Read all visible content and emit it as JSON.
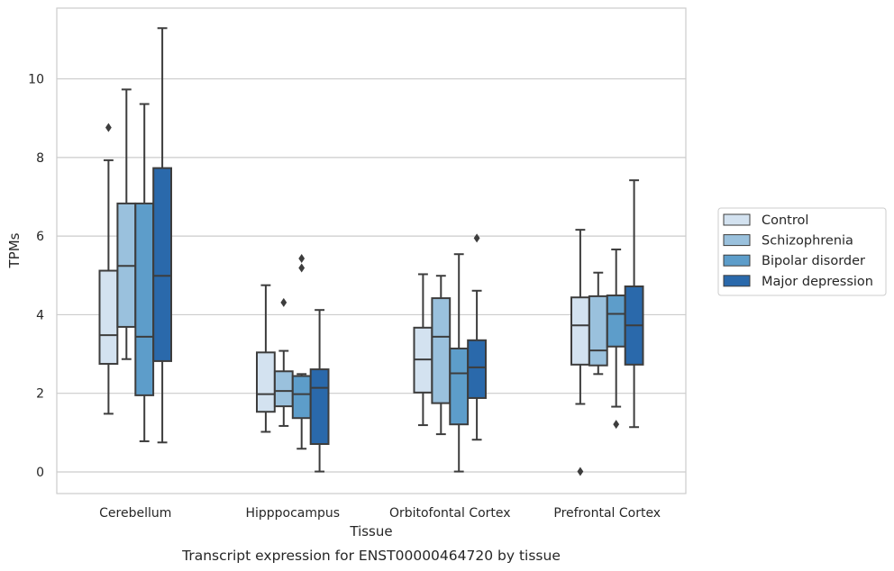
{
  "chart_data": {
    "type": "box",
    "caption": "Transcript expression for ENST00000464720 by tissue",
    "xlabel": "Tissue",
    "ylabel": "TPMs",
    "ylim": [
      -0.55,
      11.8
    ],
    "yticks": [
      0,
      2,
      4,
      6,
      8,
      10
    ],
    "grid": "horizontal",
    "legend_position": "right",
    "categories": [
      "Cerebellum",
      "Hipppocampus",
      "Orbitofontal Cortex",
      "Prefrontal Cortex"
    ],
    "series": [
      {
        "name": "Control",
        "color": "#d3e2f0",
        "boxes": [
          {
            "whislo": 1.48,
            "q1": 2.75,
            "med": 3.48,
            "q3": 5.12,
            "whishi": 7.93,
            "fliers": [
              8.76
            ]
          },
          {
            "whislo": 1.02,
            "q1": 1.53,
            "med": 1.98,
            "q3": 3.04,
            "whishi": 4.75,
            "fliers": []
          },
          {
            "whislo": 1.19,
            "q1": 2.02,
            "med": 2.86,
            "q3": 3.67,
            "whishi": 5.03,
            "fliers": []
          },
          {
            "whislo": 1.73,
            "q1": 2.73,
            "med": 3.73,
            "q3": 4.44,
            "whishi": 6.16,
            "fliers": [
              0.01
            ]
          }
        ]
      },
      {
        "name": "Schizophrenia",
        "color": "#9ac1dd",
        "boxes": [
          {
            "whislo": 2.87,
            "q1": 3.69,
            "med": 5.24,
            "q3": 6.83,
            "whishi": 9.73,
            "fliers": []
          },
          {
            "whislo": 1.17,
            "q1": 1.67,
            "med": 2.06,
            "q3": 2.56,
            "whishi": 3.08,
            "fliers": [
              4.31
            ]
          },
          {
            "whislo": 0.96,
            "q1": 1.75,
            "med": 3.44,
            "q3": 4.42,
            "whishi": 4.99,
            "fliers": []
          },
          {
            "whislo": 2.49,
            "q1": 2.71,
            "med": 3.09,
            "q3": 4.47,
            "whishi": 5.07,
            "fliers": []
          }
        ]
      },
      {
        "name": "Bipolar disorder",
        "color": "#5d9dca",
        "boxes": [
          {
            "whislo": 0.78,
            "q1": 1.95,
            "med": 3.44,
            "q3": 6.83,
            "whishi": 9.36,
            "fliers": []
          },
          {
            "whislo": 0.59,
            "q1": 1.37,
            "med": 1.98,
            "q3": 2.44,
            "whishi": 2.49,
            "fliers": [
              5.19,
              5.43
            ]
          },
          {
            "whislo": 0.01,
            "q1": 1.21,
            "med": 2.51,
            "q3": 3.14,
            "whishi": 5.54,
            "fliers": []
          },
          {
            "whislo": 1.66,
            "q1": 3.19,
            "med": 4.02,
            "q3": 4.49,
            "whishi": 5.66,
            "fliers": [
              1.21
            ]
          }
        ]
      },
      {
        "name": "Major depression",
        "color": "#2a69ab",
        "boxes": [
          {
            "whislo": 0.75,
            "q1": 2.82,
            "med": 4.99,
            "q3": 7.73,
            "whishi": 11.29,
            "fliers": []
          },
          {
            "whislo": 0.01,
            "q1": 0.71,
            "med": 2.14,
            "q3": 2.61,
            "whishi": 4.12,
            "fliers": []
          },
          {
            "whislo": 0.82,
            "q1": 1.88,
            "med": 2.66,
            "q3": 3.35,
            "whishi": 4.61,
            "fliers": [
              5.95
            ]
          },
          {
            "whislo": 1.14,
            "q1": 2.73,
            "med": 3.73,
            "q3": 4.72,
            "whishi": 7.42,
            "fliers": []
          }
        ]
      }
    ]
  }
}
